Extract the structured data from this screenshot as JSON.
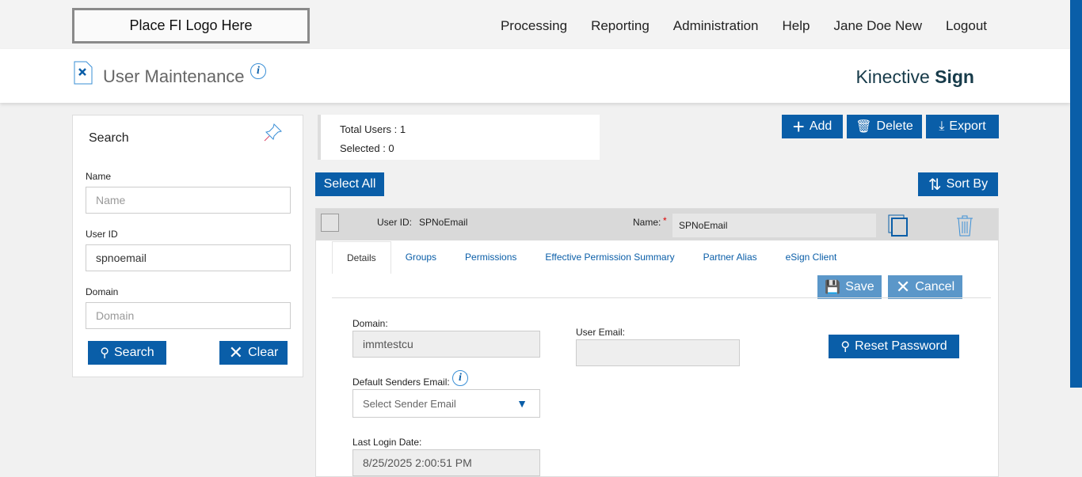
{
  "topbar": {
    "logo": "Place FI Logo Here",
    "nav": [
      "Processing",
      "Reporting",
      "Administration",
      "Help",
      "Jane Doe New",
      "Logout"
    ]
  },
  "header": {
    "title": "User Maintenance",
    "brand_light": "Kinective",
    "brand_bold": "Sign",
    "info_icon": "i"
  },
  "search": {
    "title": "Search",
    "fields": [
      {
        "label": "Name",
        "value": "",
        "placeholder": "Name"
      },
      {
        "label": "User ID",
        "value": "spnoemail",
        "placeholder": ""
      },
      {
        "label": "Domain",
        "value": "",
        "placeholder": "Domain"
      }
    ],
    "search_label": "Search",
    "clear_label": "Clear"
  },
  "totals": {
    "total": "Total Users : 1",
    "selected": "Selected : 0"
  },
  "toolbar": {
    "add": "Add",
    "delete": "Delete",
    "export": "Export",
    "select_all": "Select All",
    "sort_by": "Sort By"
  },
  "user": {
    "userid_label": "User ID:",
    "userid": "SPNoEmail",
    "name_label": "Name:",
    "required": "*",
    "name": "SPNoEmail",
    "tabs": [
      "Details",
      "Groups",
      "Permissions",
      "Effective Permission Summary",
      "Partner Alias",
      "eSign Client"
    ],
    "save": "Save",
    "cancel": "Cancel",
    "domain_label": "Domain:",
    "domain": "immtestcu",
    "email_label": "User Email:",
    "email": "",
    "sender_label": "Default Senders Email:",
    "sender_placeholder": "Select Sender Email",
    "login_label": "Last Login Date:",
    "login": "8/25/2025 2:00:51 PM",
    "reset": "Reset Password"
  },
  "colors": {
    "primary": "#0a5ea8",
    "disabled_button": "#5b97c9"
  }
}
